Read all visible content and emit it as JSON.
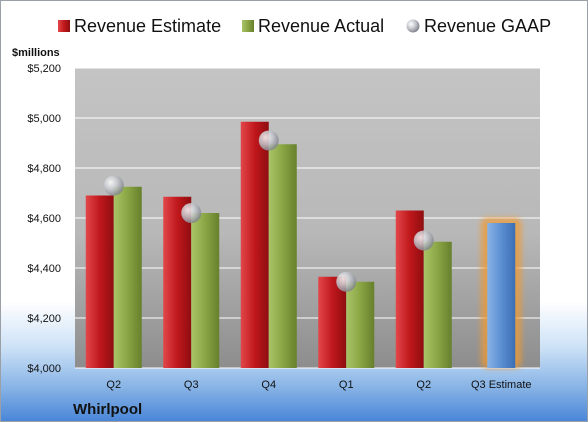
{
  "chart_data": {
    "type": "bar",
    "categories": [
      "Q2",
      "Q3",
      "Q4",
      "Q1",
      "Q2",
      "Q3 Estimate"
    ],
    "series": [
      {
        "name": "Revenue Estimate",
        "values": [
          4690,
          4685,
          4985,
          4365,
          4630,
          null
        ],
        "color": "#c0181c"
      },
      {
        "name": "Revenue Actual",
        "values": [
          4725,
          4620,
          4895,
          4345,
          4505,
          null
        ],
        "color": "#8aa544"
      },
      {
        "name": "Revenue GAAP",
        "values": [
          4730,
          4620,
          4910,
          4345,
          4510,
          null
        ],
        "color": "#b8bcc4"
      },
      {
        "name": "Q3 Estimate",
        "values": [
          null,
          null,
          null,
          null,
          null,
          4580
        ],
        "color": "#5b8fd1"
      }
    ],
    "legend": [
      "Revenue Estimate",
      "Revenue Actual",
      "Revenue GAAP"
    ],
    "ylabel": "$millions",
    "ylim": [
      4000,
      5200
    ],
    "yticks": [
      "$4,000",
      "$4,200",
      "$4,400",
      "$4,600",
      "$4,800",
      "$5,000",
      "$5,200"
    ],
    "ytick_values": [
      4000,
      4200,
      4400,
      4600,
      4800,
      5000,
      5200
    ],
    "grid": true,
    "legend_placement": "top",
    "footer": "Whirlpool"
  }
}
